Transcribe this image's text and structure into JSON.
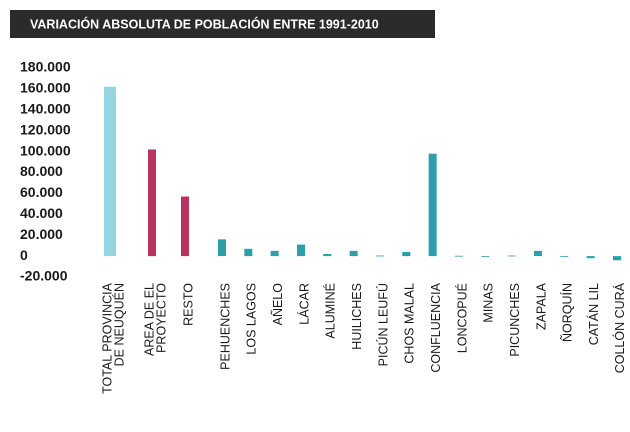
{
  "chart_data": {
    "type": "bar",
    "title": "VARIACIÓN ABSOLUTA DE POBLACIÓN ENTRE 1991-2010",
    "categories": [
      [
        "TOTAL PROVINCIA",
        "DE NEUQUÉN"
      ],
      [
        "AREA DE EL",
        "PROYECTO"
      ],
      [
        "RESTO"
      ],
      [
        "PEHUENCHES"
      ],
      [
        "LOS LAGOS"
      ],
      [
        "AÑELO"
      ],
      [
        "LÁCAR"
      ],
      [
        "ALUMINÉ"
      ],
      [
        "HUILICHES"
      ],
      [
        "PICÚN LEUFÚ"
      ],
      [
        "CHOS MALAL"
      ],
      [
        "CONFLUENCIA"
      ],
      [
        "LONCOPUÉ"
      ],
      [
        "MINAS"
      ],
      [
        "PICUNCHES"
      ],
      [
        "ZAPALA"
      ],
      [
        "ÑORQUÍN"
      ],
      [
        "CATÁN LIL"
      ],
      [
        "COLLÓN CURÁ"
      ]
    ],
    "values": [
      162000,
      102000,
      57000,
      16000,
      7000,
      5000,
      11000,
      2000,
      5000,
      500,
      4000,
      98000,
      300,
      -300,
      500,
      5000,
      -200,
      -2000,
      -4000
    ],
    "colors": [
      "#93d5e0",
      "#b8335f",
      "#b8335f",
      "#2aa0ab",
      "#2aa0ab",
      "#2aa0ab",
      "#2aa0ab",
      "#2aa0ab",
      "#2aa0ab",
      "#2aa0ab",
      "#2aa0ab",
      "#2aa0ab",
      "#2aa0ab",
      "#2aa0ab",
      "#2aa0ab",
      "#2aa0ab",
      "#2aa0ab",
      "#2aa0ab",
      "#2aa0ab"
    ],
    "ylim": [
      -20000,
      180000
    ],
    "yticks": [
      {
        "value": -20000,
        "label": "-20.000"
      },
      0,
      {
        "value": 20000,
        "label": "20.000"
      },
      {
        "value": 40000,
        "label": "40.000"
      },
      {
        "value": 60000,
        "label": "60.000"
      },
      {
        "value": 80000,
        "label": "80.000"
      },
      {
        "value": 100000,
        "label": "100.000"
      },
      {
        "value": 120000,
        "label": "120.000"
      },
      {
        "value": 140000,
        "label": "140.000"
      },
      {
        "value": 160000,
        "label": "160.000"
      },
      {
        "value": 180000,
        "label": "180.000"
      }
    ],
    "grid": false
  }
}
